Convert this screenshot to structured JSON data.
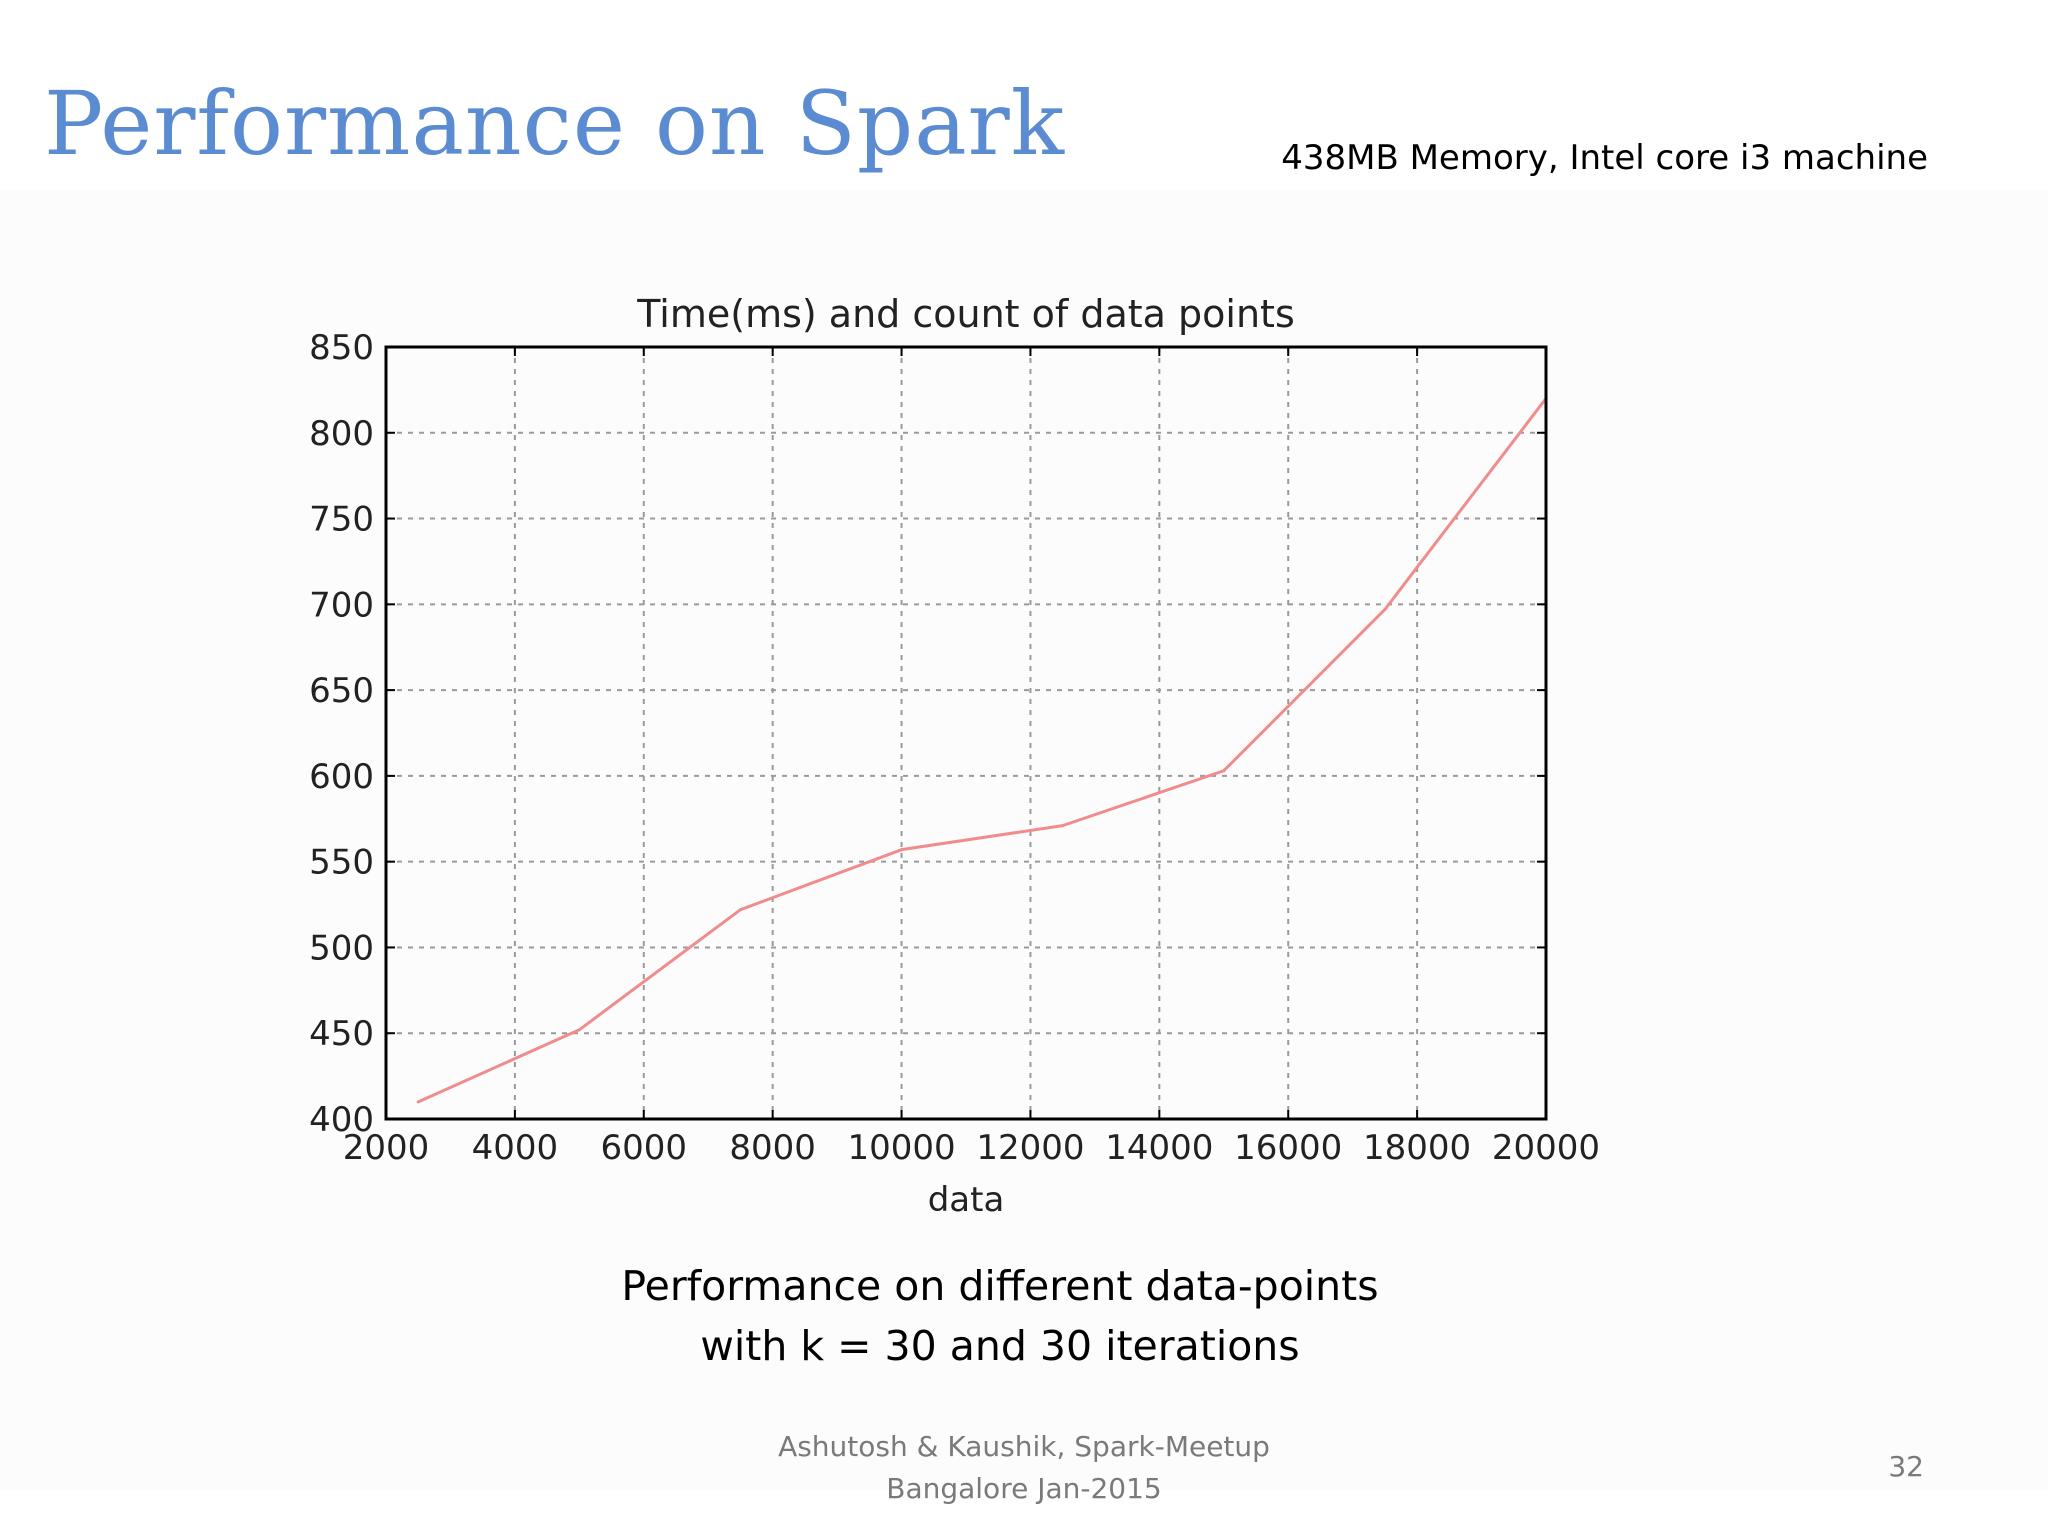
{
  "slide": {
    "title": "Performance on Spark",
    "subtitle": "438MB Memory, Intel core i3 machine",
    "caption_line1": "Performance on different data-points",
    "caption_line2": "with k = 30 and 30 iterations",
    "footer_line1": "Ashutosh & Kaushik, Spark-Meetup",
    "footer_line2": "Bangalore Jan-2015",
    "page_number": "32"
  },
  "chart_data": {
    "type": "line",
    "title": "Time(ms) and count of data points",
    "xlabel": "data",
    "ylabel": "",
    "xlim": [
      2000,
      20000
    ],
    "ylim": [
      400,
      850
    ],
    "xticks": [
      2000,
      4000,
      6000,
      8000,
      10000,
      12000,
      14000,
      16000,
      18000,
      20000
    ],
    "yticks": [
      400,
      450,
      500,
      550,
      600,
      650,
      700,
      750,
      800,
      850
    ],
    "grid": true,
    "line_color": "#f08c8c",
    "series": [
      {
        "x": [
          2500,
          5000,
          7500,
          10000,
          12500,
          15000,
          17500,
          20000
        ],
        "y": [
          410,
          452,
          522,
          557,
          571,
          603,
          697,
          820
        ]
      }
    ]
  }
}
